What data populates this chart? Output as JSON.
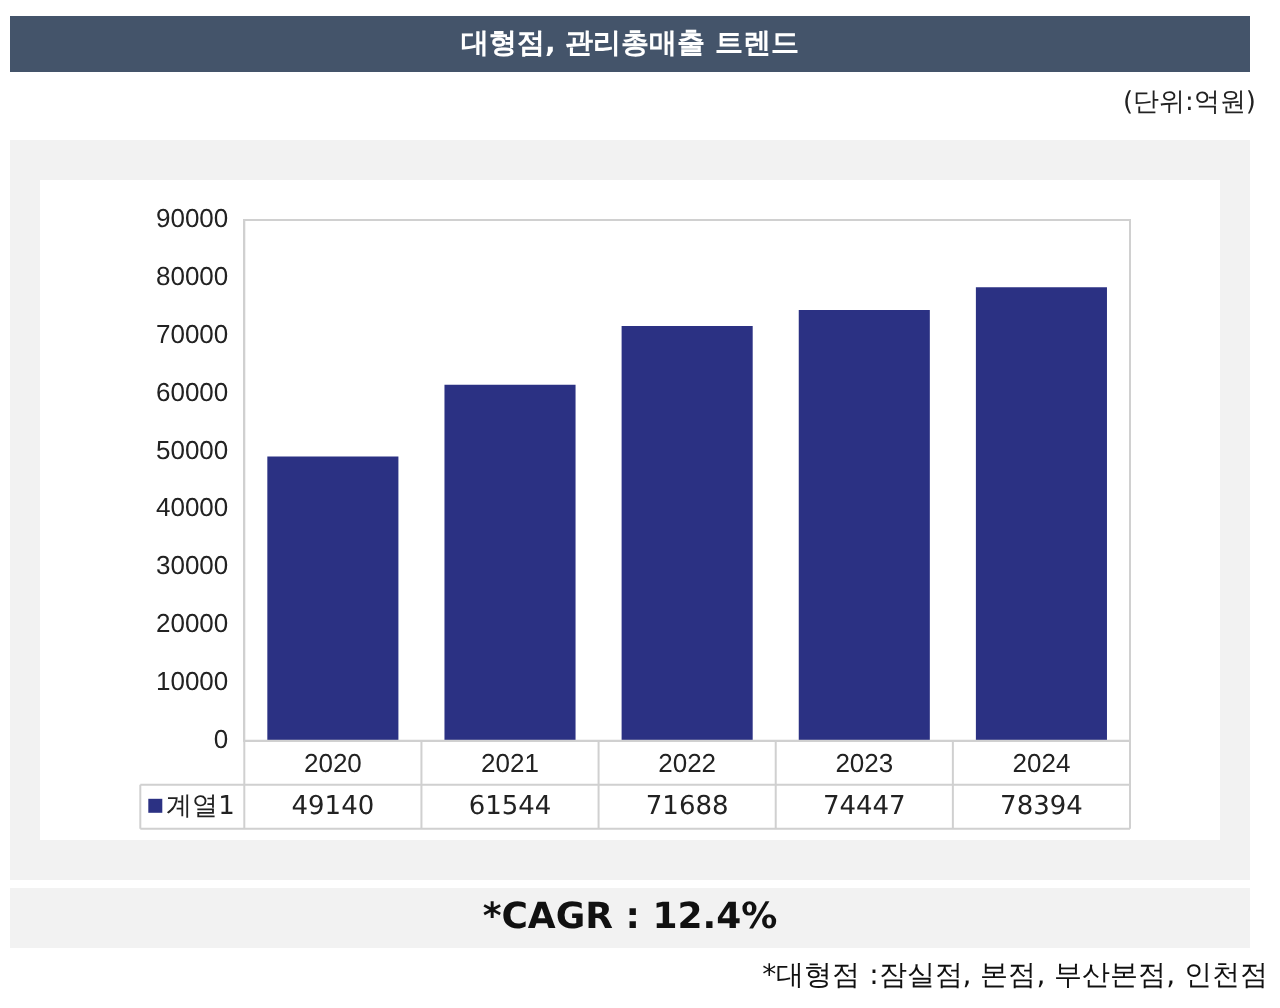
{
  "chart_data": {
    "type": "bar",
    "title": "대형점, 관리총매출 트렌드",
    "categories": [
      "2020",
      "2021",
      "2022",
      "2023",
      "2024"
    ],
    "series": [
      {
        "name": "계열1",
        "color": "#2b3183",
        "values": [
          49140,
          61544,
          71688,
          74447,
          78394
        ]
      }
    ],
    "ylim": [
      0,
      90000
    ],
    "yticks": [
      0,
      10000,
      20000,
      30000,
      40000,
      50000,
      60000,
      70000,
      80000,
      90000
    ],
    "grid": false,
    "legend": "bottom",
    "data_labels": true,
    "annotations": [
      "(단위:억원)",
      "*CAGR : 12.4%",
      "*대형점 :잠실점, 본점, 부산본점, 인천점"
    ]
  }
}
